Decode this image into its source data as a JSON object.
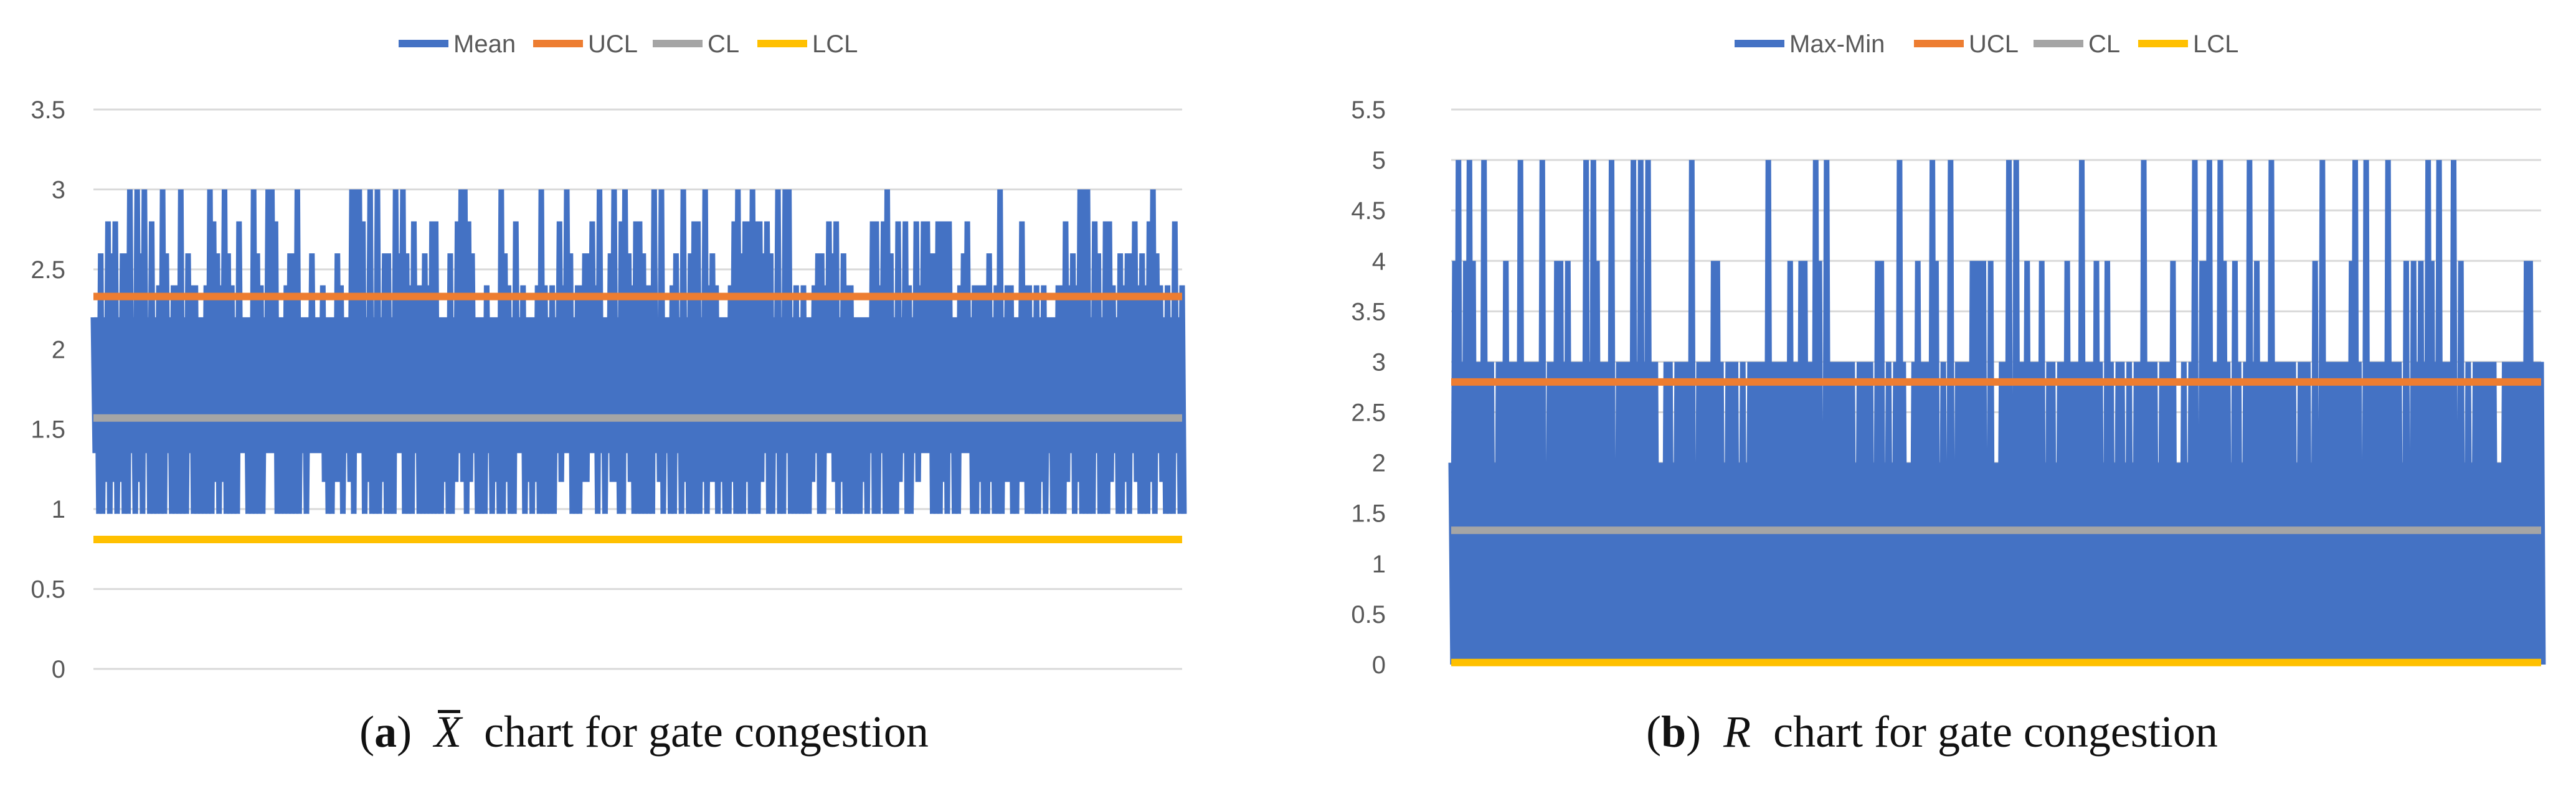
{
  "chart_data": [
    {
      "type": "line",
      "panel": "a",
      "caption_label": "a",
      "caption_symbol": "X",
      "caption_text": "chart for gate congestion",
      "yticks": [
        "0",
        "0.5",
        "1",
        "1.5",
        "2",
        "2.5",
        "3",
        "3.5"
      ],
      "ylim": [
        0,
        3.5
      ],
      "legend": [
        "Mean",
        "UCL",
        "CL",
        "LCL"
      ],
      "legend_position": "top-center",
      "colors": {
        "series": "#4472C4",
        "UCL": "#ED7D31",
        "CL": "#A5A5A5",
        "LCL": "#FFC000"
      },
      "series": [
        {
          "name": "Mean",
          "values_approx": "oscillates between ~0.97 and ~2.2–3.0, peaks at 3.0"
        },
        {
          "name": "UCL",
          "value": 2.33
        },
        {
          "name": "CL",
          "value": 1.57
        },
        {
          "name": "LCL",
          "value": 0.81
        }
      ],
      "n_points": 300,
      "seed": 7,
      "lows": [
        0.97,
        0.97,
        0.97,
        1.17,
        1.35
      ],
      "highs": [
        2.2,
        2.2,
        2.2,
        2.4,
        2.4,
        2.6,
        2.8,
        3.0
      ]
    },
    {
      "type": "line",
      "panel": "b",
      "caption_label": "b",
      "caption_symbol": "R",
      "caption_text": "chart for gate congestion",
      "yticks": [
        "0",
        "0.5",
        "1",
        "1.5",
        "2",
        "2.5",
        "3",
        "3.5",
        "4",
        "4.5",
        "5",
        "5.5"
      ],
      "ylim": [
        0,
        5.5
      ],
      "legend": [
        "Max-Min",
        "UCL",
        "CL",
        "LCL"
      ],
      "legend_position": "top-center",
      "colors": {
        "series": "#4472C4",
        "UCL": "#ED7D31",
        "CL": "#A5A5A5",
        "LCL": "#FFC000"
      },
      "series": [
        {
          "name": "Max-Min",
          "values_approx": "oscillates between 0 and 2–5, mostly 3, peaks at 5"
        },
        {
          "name": "UCL",
          "value": 2.8
        },
        {
          "name": "CL",
          "value": 1.33
        },
        {
          "name": "LCL",
          "value": 0.02
        }
      ],
      "n_points": 300,
      "seed": 13,
      "lows": [
        0,
        0,
        0,
        0
      ],
      "highs": [
        2,
        3,
        3,
        3,
        3,
        3,
        4,
        5
      ]
    }
  ]
}
